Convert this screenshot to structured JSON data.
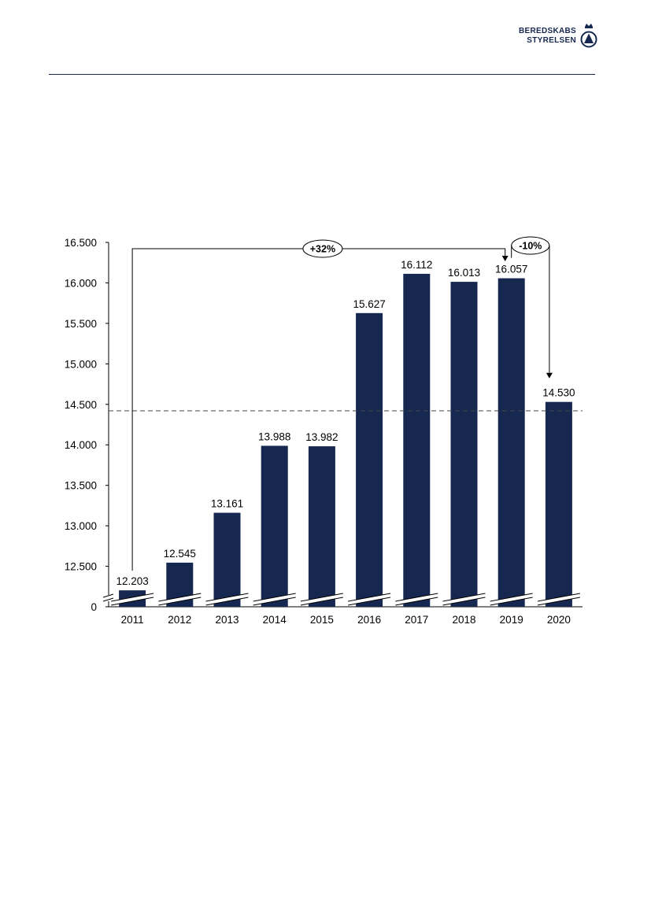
{
  "logo": {
    "line1": "BEREDSKABS",
    "line2": "STYRELSEN",
    "icon": "crown-shield-icon"
  },
  "chart_data": {
    "type": "bar",
    "categories": [
      "2011",
      "2012",
      "2013",
      "2014",
      "2015",
      "2016",
      "2017",
      "2018",
      "2019",
      "2020"
    ],
    "values": [
      12203,
      12545,
      13161,
      13988,
      13982,
      15627,
      16112,
      16013,
      16057,
      14530
    ],
    "value_labels": [
      "12.203",
      "12.545",
      "13.161",
      "13.988",
      "13.982",
      "15.627",
      "16.112",
      "16.013",
      "16.057",
      "14.530"
    ],
    "y_ticks": [
      {
        "value": 12500,
        "label": "12.500"
      },
      {
        "value": 13000,
        "label": "13.000"
      },
      {
        "value": 13500,
        "label": "13.500"
      },
      {
        "value": 14000,
        "label": "14.000"
      },
      {
        "value": 14500,
        "label": "14.500"
      },
      {
        "value": 15000,
        "label": "15.000"
      },
      {
        "value": 15500,
        "label": "15.500"
      },
      {
        "value": 16000,
        "label": "16.000"
      },
      {
        "value": 16500,
        "label": "16.500"
      }
    ],
    "y_zero_label": "0",
    "ylim": [
      12000,
      16500
    ],
    "axis_break": true,
    "reference_line": {
      "value": 14420,
      "style": "dashed"
    },
    "annotations": [
      {
        "label": "+32%",
        "from": "2011",
        "to": "2019"
      },
      {
        "label": "-10%",
        "from": "2019",
        "to": "2020"
      }
    ],
    "bar_color": "#16284f",
    "title": "",
    "xlabel": "",
    "ylabel": ""
  }
}
